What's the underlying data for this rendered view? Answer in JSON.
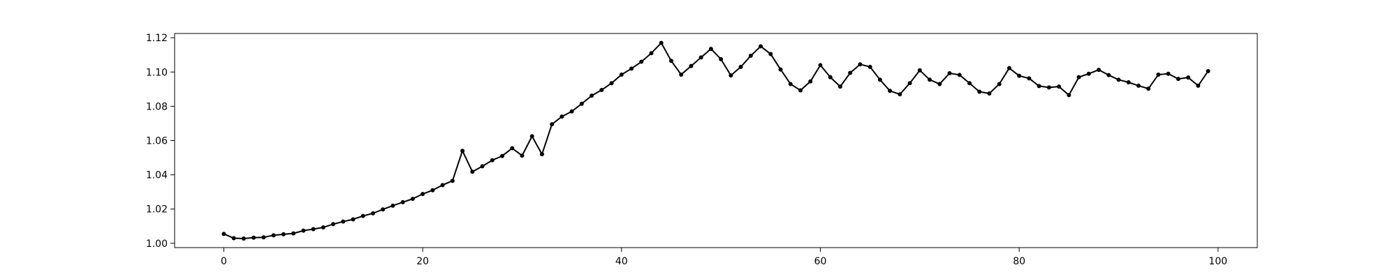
{
  "chart_data": {
    "type": "line",
    "title": "",
    "xlabel": "",
    "ylabel": "",
    "xlim": [
      -4.95,
      103.95
    ],
    "ylim": [
      0.9975,
      1.1225
    ],
    "grid": false,
    "legend": "none",
    "x_ticks": [
      0,
      20,
      40,
      60,
      80,
      100
    ],
    "y_ticks": [
      1.0,
      1.02,
      1.04,
      1.06,
      1.08,
      1.1,
      1.12
    ],
    "x_tick_labels": [
      "0",
      "20",
      "40",
      "60",
      "80",
      "100"
    ],
    "y_tick_labels": [
      "1.00",
      "1.02",
      "1.04",
      "1.06",
      "1.08",
      "1.10",
      "1.12"
    ],
    "series": [
      {
        "color": "#000000",
        "marker": "circle",
        "x": [
          0,
          1,
          2,
          3,
          4,
          5,
          6,
          7,
          8,
          9,
          10,
          11,
          12,
          13,
          14,
          15,
          16,
          17,
          18,
          19,
          20,
          21,
          22,
          23,
          24,
          25,
          26,
          27,
          28,
          29,
          30,
          31,
          32,
          33,
          34,
          35,
          36,
          37,
          38,
          39,
          40,
          41,
          42,
          43,
          44,
          45,
          46,
          47,
          48,
          49,
          50,
          51,
          52,
          53,
          54,
          55,
          56,
          57,
          58,
          59,
          60,
          61,
          62,
          63,
          64,
          65,
          66,
          67,
          68,
          69,
          70,
          71,
          72,
          73,
          74,
          75,
          76,
          77,
          78,
          79,
          80,
          81,
          82,
          83,
          84,
          85,
          86,
          87,
          88,
          89,
          90,
          91,
          92,
          93,
          94,
          95,
          96,
          97,
          98,
          99
        ],
        "y": [
          1.0055,
          1.003,
          1.0028,
          1.0033,
          1.0035,
          1.0047,
          1.0053,
          1.0058,
          1.0074,
          1.0083,
          1.0093,
          1.0112,
          1.0127,
          1.014,
          1.016,
          1.0175,
          1.0198,
          1.022,
          1.024,
          1.026,
          1.0288,
          1.031,
          1.034,
          1.0365,
          1.054,
          1.0418,
          1.045,
          1.0485,
          1.051,
          1.0555,
          1.0512,
          1.0625,
          1.052,
          1.0695,
          1.074,
          1.077,
          1.0815,
          1.0862,
          1.0895,
          1.0935,
          1.0985,
          1.102,
          1.106,
          1.111,
          1.117,
          1.1065,
          1.0985,
          1.1035,
          1.1085,
          1.1135,
          1.1075,
          1.098,
          1.103,
          1.1095,
          1.115,
          1.1105,
          1.1015,
          1.093,
          1.0893,
          1.0945,
          1.104,
          1.097,
          1.0915,
          1.0995,
          1.1045,
          1.103,
          1.0955,
          1.089,
          1.087,
          1.0935,
          1.101,
          1.0955,
          1.093,
          1.0993,
          1.0983,
          1.0935,
          1.0885,
          1.0875,
          1.093,
          1.1023,
          1.0978,
          1.0963,
          1.0918,
          1.091,
          1.0915,
          1.0865,
          1.097,
          1.099,
          1.1013,
          1.0982,
          1.0955,
          1.094,
          1.092,
          1.0903,
          1.0985,
          1.099,
          1.096,
          1.0968,
          1.092,
          1.1005
        ]
      }
    ]
  }
}
